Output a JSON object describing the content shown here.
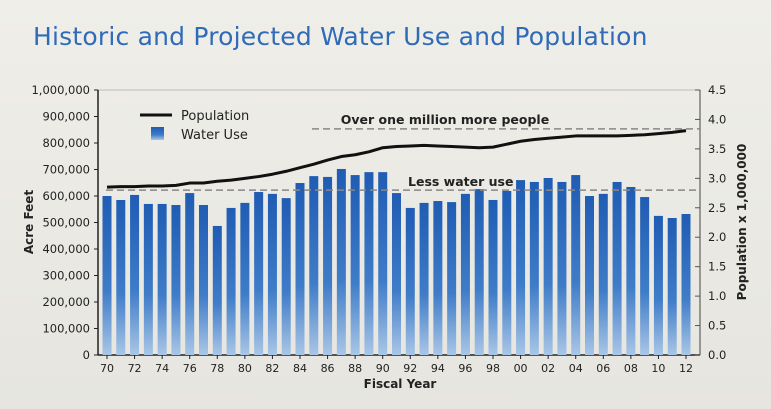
{
  "chart_data": {
    "type": "bar",
    "title": "Historic and Projected Water Use and Population",
    "xlabel": "Fiscal Year",
    "ylabel": "Acre Feet",
    "y2label": "Population x 1,000,000",
    "ylim": [
      0,
      1000000
    ],
    "y2lim": [
      0,
      4.5
    ],
    "yticks": [
      "0",
      "100,000",
      "200,000",
      "300,000",
      "400,000",
      "500,000",
      "600,000",
      "700,000",
      "800,000",
      "900,000",
      "1,000,000"
    ],
    "y2ticks": [
      "0.0",
      "0.5",
      "1.0",
      "1.5",
      "2.0",
      "2.5",
      "3.0",
      "3.5",
      "4.0",
      "4.5"
    ],
    "xticklabels": [
      "70",
      "72",
      "74",
      "76",
      "78",
      "80",
      "82",
      "84",
      "86",
      "88",
      "90",
      "92",
      "94",
      "96",
      "98",
      "00",
      "02",
      "04",
      "06",
      "08",
      "10",
      "12"
    ],
    "categories": [
      "70",
      "71",
      "72",
      "73",
      "74",
      "75",
      "76",
      "77",
      "78",
      "79",
      "80",
      "81",
      "82",
      "83",
      "84",
      "85",
      "86",
      "87",
      "88",
      "89",
      "90",
      "91",
      "92",
      "93",
      "94",
      "95",
      "96",
      "97",
      "98",
      "99",
      "00",
      "01",
      "02",
      "03",
      "04",
      "05",
      "06",
      "07",
      "08",
      "09",
      "10",
      "11",
      "12"
    ],
    "legend": {
      "placement": "top-left"
    },
    "series": [
      {
        "name": "Water Use",
        "type": "bar",
        "axis": "left",
        "color": "#2563b8",
        "values": [
          600000,
          585000,
          604000,
          570000,
          570000,
          566000,
          611000,
          566000,
          487000,
          555000,
          574000,
          615000,
          608000,
          592000,
          649000,
          675000,
          672000,
          702000,
          679000,
          690000,
          690000,
          611000,
          555000,
          574000,
          581000,
          577000,
          608000,
          626000,
          585000,
          619000,
          660000,
          653000,
          668000,
          653000,
          679000,
          600000,
          608000,
          653000,
          634000,
          596000,
          525000,
          517000,
          532000
        ]
      },
      {
        "name": "Population",
        "type": "line",
        "axis": "right",
        "color": "#111111",
        "values": [
          2.85,
          2.86,
          2.86,
          2.87,
          2.87,
          2.88,
          2.92,
          2.92,
          2.95,
          2.97,
          3.0,
          3.03,
          3.07,
          3.12,
          3.18,
          3.24,
          3.31,
          3.37,
          3.4,
          3.45,
          3.52,
          3.54,
          3.55,
          3.56,
          3.55,
          3.54,
          3.53,
          3.52,
          3.53,
          3.58,
          3.63,
          3.66,
          3.68,
          3.7,
          3.72,
          3.72,
          3.72,
          3.72,
          3.73,
          3.74,
          3.76,
          3.78,
          3.81
        ]
      }
    ],
    "annotations": [
      {
        "text": "Over one million more people",
        "axis": "right",
        "y": 3.84
      },
      {
        "text": "Less water use",
        "axis": "right",
        "y": 2.8
      }
    ],
    "grid": false
  }
}
